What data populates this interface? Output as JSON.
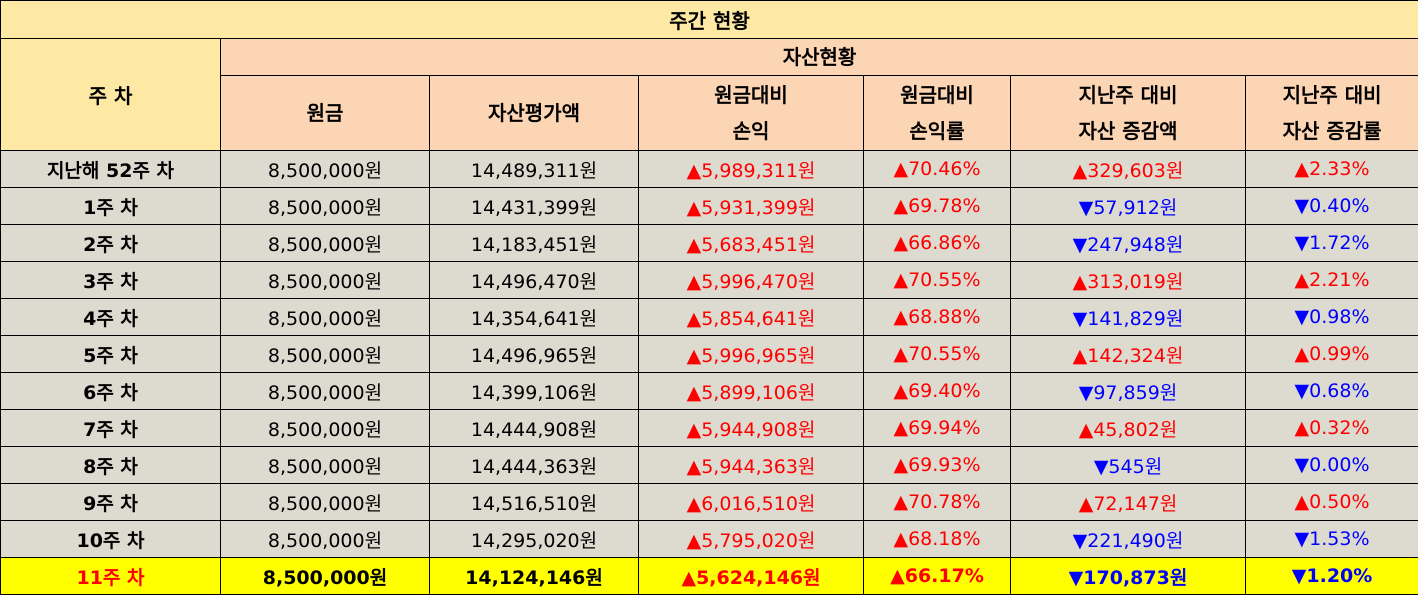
{
  "table": {
    "title": "주간 현황",
    "row_header": "주 차",
    "group_header": "자산현황",
    "columns": [
      {
        "line1": "원금",
        "line2": ""
      },
      {
        "line1": "자산평가액",
        "line2": ""
      },
      {
        "line1": "원금대비",
        "line2": "손익"
      },
      {
        "line1": "원금대비",
        "line2": "손익률"
      },
      {
        "line1": "지난주 대비",
        "line2": "자산 증감액"
      },
      {
        "line1": "지난주 대비",
        "line2": "자산 증감률"
      }
    ],
    "rows": [
      {
        "week": "지난해 52주 차",
        "principal": "8,500,000원",
        "value": "14,489,311원",
        "pnl": "▲5,989,311원",
        "pnl_dir": "up",
        "pnl_rate": "▲70.46%",
        "rate_dir": "up",
        "wk_change": "▲329,603원",
        "wk_dir": "up",
        "wk_rate": "▲2.33%",
        "highlight": false
      },
      {
        "week": "1주 차",
        "principal": "8,500,000원",
        "value": "14,431,399원",
        "pnl": "▲5,931,399원",
        "pnl_dir": "up",
        "pnl_rate": "▲69.78%",
        "rate_dir": "up",
        "wk_change": "▼57,912원",
        "wk_dir": "down",
        "wk_rate": "▼0.40%",
        "highlight": false
      },
      {
        "week": "2주 차",
        "principal": "8,500,000원",
        "value": "14,183,451원",
        "pnl": "▲5,683,451원",
        "pnl_dir": "up",
        "pnl_rate": "▲66.86%",
        "rate_dir": "up",
        "wk_change": "▼247,948원",
        "wk_dir": "down",
        "wk_rate": "▼1.72%",
        "highlight": false
      },
      {
        "week": "3주 차",
        "principal": "8,500,000원",
        "value": "14,496,470원",
        "pnl": "▲5,996,470원",
        "pnl_dir": "up",
        "pnl_rate": "▲70.55%",
        "rate_dir": "up",
        "wk_change": "▲313,019원",
        "wk_dir": "up",
        "wk_rate": "▲2.21%",
        "highlight": false
      },
      {
        "week": "4주 차",
        "principal": "8,500,000원",
        "value": "14,354,641원",
        "pnl": "▲5,854,641원",
        "pnl_dir": "up",
        "pnl_rate": "▲68.88%",
        "rate_dir": "up",
        "wk_change": "▼141,829원",
        "wk_dir": "down",
        "wk_rate": "▼0.98%",
        "highlight": false
      },
      {
        "week": "5주 차",
        "principal": "8,500,000원",
        "value": "14,496,965원",
        "pnl": "▲5,996,965원",
        "pnl_dir": "up",
        "pnl_rate": "▲70.55%",
        "rate_dir": "up",
        "wk_change": "▲142,324원",
        "wk_dir": "up",
        "wk_rate": "▲0.99%",
        "highlight": false
      },
      {
        "week": "6주 차",
        "principal": "8,500,000원",
        "value": "14,399,106원",
        "pnl": "▲5,899,106원",
        "pnl_dir": "up",
        "pnl_rate": "▲69.40%",
        "rate_dir": "up",
        "wk_change": "▼97,859원",
        "wk_dir": "down",
        "wk_rate": "▼0.68%",
        "highlight": false
      },
      {
        "week": "7주 차",
        "principal": "8,500,000원",
        "value": "14,444,908원",
        "pnl": "▲5,944,908원",
        "pnl_dir": "up",
        "pnl_rate": "▲69.94%",
        "rate_dir": "up",
        "wk_change": "▲45,802원",
        "wk_dir": "up",
        "wk_rate": "▲0.32%",
        "highlight": false
      },
      {
        "week": "8주 차",
        "principal": "8,500,000원",
        "value": "14,444,363원",
        "pnl": "▲5,944,363원",
        "pnl_dir": "up",
        "pnl_rate": "▲69.93%",
        "rate_dir": "up",
        "wk_change": "▼545원",
        "wk_dir": "down",
        "wk_rate": "▼0.00%",
        "highlight": false
      },
      {
        "week": "9주 차",
        "principal": "8,500,000원",
        "value": "14,516,510원",
        "pnl": "▲6,016,510원",
        "pnl_dir": "up",
        "pnl_rate": "▲70.78%",
        "rate_dir": "up",
        "wk_change": "▲72,147원",
        "wk_dir": "up",
        "wk_rate": "▲0.50%",
        "highlight": false
      },
      {
        "week": "10주 차",
        "principal": "8,500,000원",
        "value": "14,295,020원",
        "pnl": "▲5,795,020원",
        "pnl_dir": "up",
        "pnl_rate": "▲68.18%",
        "rate_dir": "up",
        "wk_change": "▼221,490원",
        "wk_dir": "down",
        "wk_rate": "▼1.53%",
        "highlight": false
      },
      {
        "week": "11주 차",
        "principal": "8,500,000원",
        "value": "14,124,146원",
        "pnl": "▲5,624,146원",
        "pnl_dir": "up",
        "pnl_rate": "▲66.17%",
        "rate_dir": "up",
        "wk_change": "▼170,873원",
        "wk_dir": "down",
        "wk_rate": "▼1.20%",
        "highlight": true
      }
    ]
  },
  "colors": {
    "header_yellow": "#fde9a3",
    "header_peach": "#fcd5b4",
    "row_background": "#dddad0",
    "highlight_background": "#ffff00",
    "increase": "#ff0000",
    "decrease": "#0000ff"
  }
}
